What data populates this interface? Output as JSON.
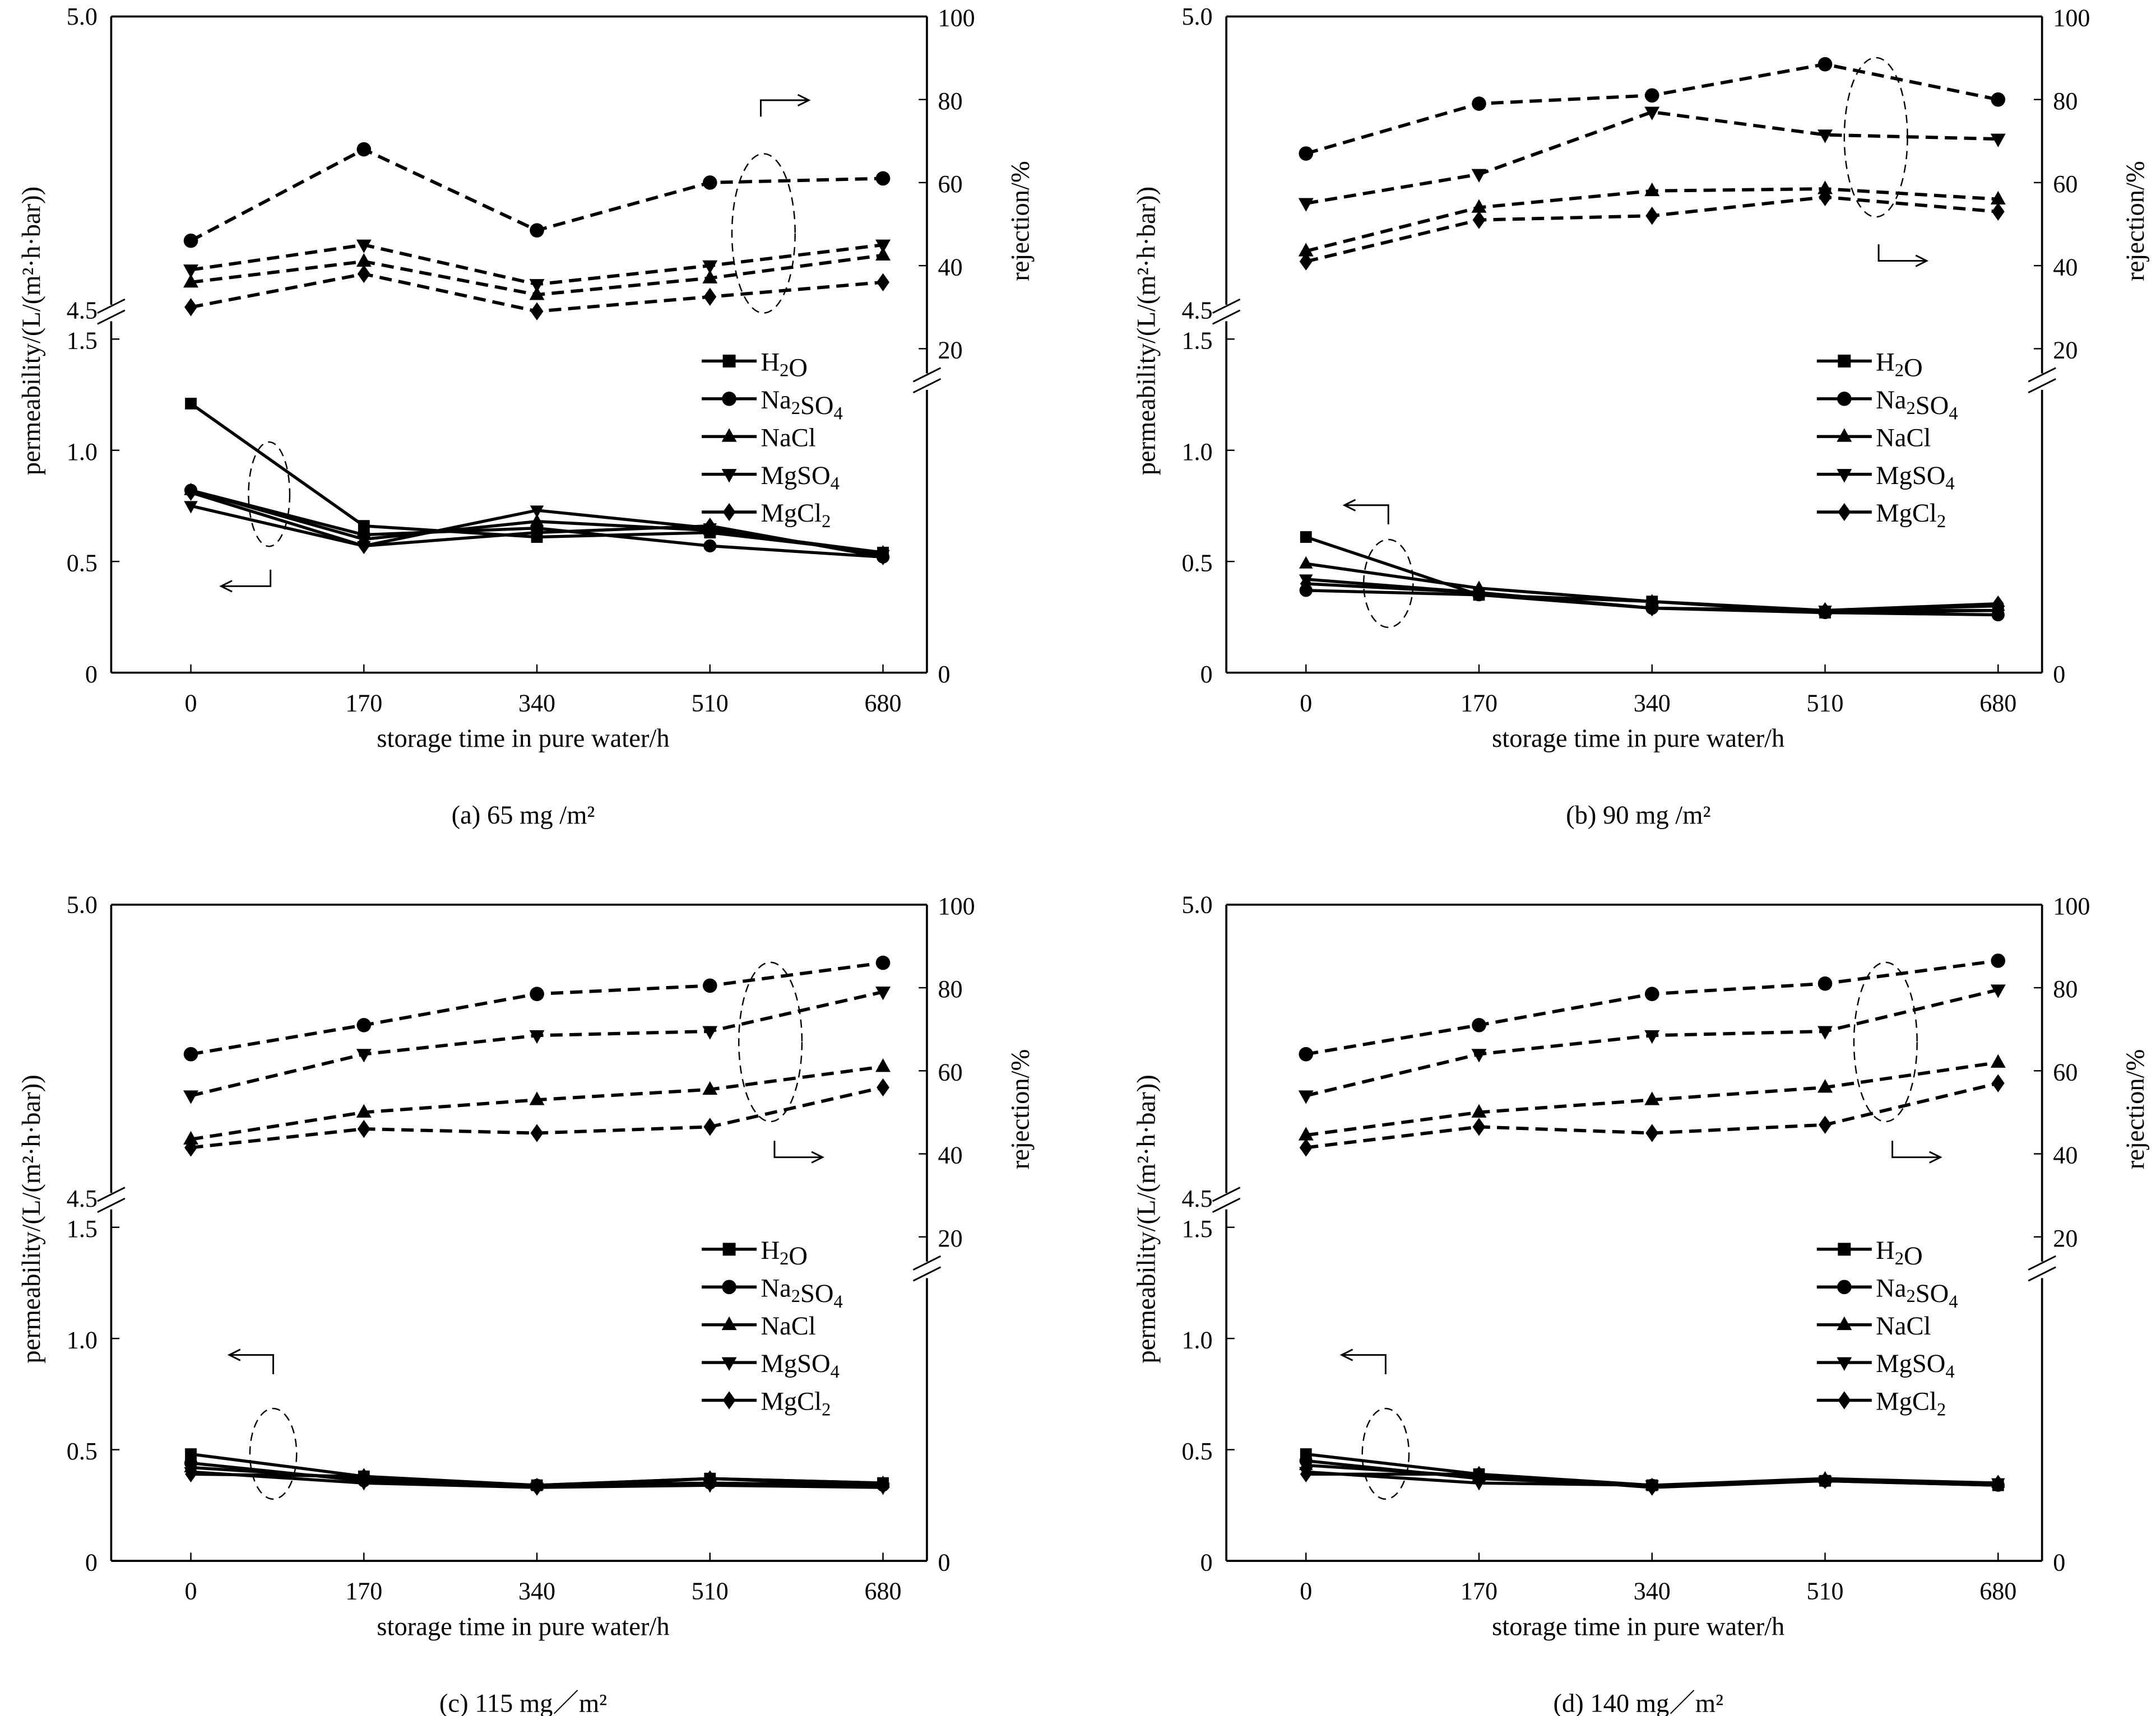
{
  "chart_data": [
    {
      "type": "line",
      "caption": "(a) 65 mg /m²",
      "xlabel": "storage time in pure water/h",
      "ylabel_left": "permeability/(L/(m²·h·bar))",
      "ylabel_right": "rejection/%",
      "x": [
        0,
        170,
        340,
        510,
        680
      ],
      "x_ticks": [
        "0",
        "170",
        "340",
        "510",
        "680"
      ],
      "y_left_ticks_lower": [
        "0",
        "0.5",
        "1.0",
        "1.5"
      ],
      "y_left_ticks_upper": [
        "4.5",
        "5.0"
      ],
      "y_right_ticks": [
        "0",
        "20",
        "40",
        "60",
        "80",
        "100"
      ],
      "ylim_left_lower": [
        0,
        1.5
      ],
      "ylim_left_upper": [
        4.5,
        5.0
      ],
      "ylim_right": [
        0,
        100
      ],
      "legend": [
        "H₂O",
        "Na₂SO₄",
        "NaCl",
        "MgSO₄",
        "MgCl₂"
      ],
      "legend_position": "right-middle",
      "permeability": [
        {
          "name": "H2O",
          "marker": "square",
          "values": [
            1.21,
            0.66,
            0.61,
            0.63,
            0.54
          ]
        },
        {
          "name": "Na2SO4",
          "marker": "circle",
          "values": [
            0.82,
            0.62,
            0.65,
            0.57,
            0.52
          ]
        },
        {
          "name": "NaCl",
          "marker": "triangle-up",
          "values": [
            0.82,
            0.6,
            0.68,
            0.64,
            0.54
          ]
        },
        {
          "name": "MgSO4",
          "marker": "triangle-down",
          "values": [
            0.75,
            0.57,
            0.73,
            0.65,
            0.53
          ]
        },
        {
          "name": "MgCl2",
          "marker": "diamond",
          "values": [
            0.81,
            0.57,
            0.63,
            0.66,
            0.52
          ]
        }
      ],
      "rejection": [
        {
          "name": "Na2SO4",
          "marker": "circle",
          "values": [
            46,
            68,
            48.5,
            60,
            61
          ]
        },
        {
          "name": "MgSO4",
          "marker": "triangle-down",
          "values": [
            39,
            45,
            35.5,
            40,
            45
          ]
        },
        {
          "name": "NaCl",
          "marker": "triangle-up",
          "values": [
            36,
            41,
            33,
            37,
            42.5
          ]
        },
        {
          "name": "MgCl2",
          "marker": "diamond",
          "values": [
            30,
            38,
            29,
            32.5,
            36
          ]
        }
      ],
      "arrow_left_position": "bottom-left",
      "arrow_right_position": "top"
    },
    {
      "type": "line",
      "caption": "(b) 90 mg /m²",
      "xlabel": "storage time in pure water/h",
      "ylabel_left": "permeability/(L/(m²·h·bar))",
      "ylabel_right": "rejection/%",
      "x": [
        0,
        170,
        340,
        510,
        680
      ],
      "x_ticks": [
        "0",
        "170",
        "340",
        "510",
        "680"
      ],
      "y_left_ticks_lower": [
        "0",
        "0.5",
        "1.0",
        "1.5"
      ],
      "y_left_ticks_upper": [
        "4.5",
        "5.0"
      ],
      "y_right_ticks": [
        "0",
        "20",
        "40",
        "60",
        "80",
        "100"
      ],
      "ylim_left_lower": [
        0,
        1.5
      ],
      "ylim_left_upper": [
        4.5,
        5.0
      ],
      "ylim_right": [
        0,
        100
      ],
      "legend": [
        "H₂O",
        "Na₂SO₄",
        "NaCl",
        "MgSO₄",
        "MgCl₂"
      ],
      "legend_position": "right-middle",
      "permeability": [
        {
          "name": "H2O",
          "marker": "square",
          "values": [
            0.61,
            0.35,
            0.32,
            0.27,
            0.28
          ]
        },
        {
          "name": "Na2SO4",
          "marker": "circle",
          "values": [
            0.37,
            0.35,
            0.29,
            0.27,
            0.26
          ]
        },
        {
          "name": "NaCl",
          "marker": "triangle-up",
          "values": [
            0.49,
            0.38,
            0.32,
            0.28,
            0.3
          ]
        },
        {
          "name": "MgSO4",
          "marker": "triangle-down",
          "values": [
            0.42,
            0.36,
            0.29,
            0.28,
            0.28
          ]
        },
        {
          "name": "MgCl2",
          "marker": "diamond",
          "values": [
            0.4,
            0.36,
            0.29,
            0.28,
            0.31
          ]
        }
      ],
      "rejection": [
        {
          "name": "Na2SO4",
          "marker": "circle",
          "values": [
            67,
            79,
            81,
            88.5,
            80
          ]
        },
        {
          "name": "MgSO4",
          "marker": "triangle-down",
          "values": [
            55,
            62,
            77,
            71.5,
            70.5
          ]
        },
        {
          "name": "NaCl",
          "marker": "triangle-up",
          "values": [
            43.5,
            54,
            58,
            58.5,
            56
          ]
        },
        {
          "name": "MgCl2",
          "marker": "diamond",
          "values": [
            41,
            51,
            52,
            56.5,
            53
          ]
        }
      ],
      "arrow_left_position": "upper-left",
      "arrow_right_position": "bottom"
    },
    {
      "type": "line",
      "caption": "(c) 115 mg／m²",
      "xlabel": "storage time in pure water/h",
      "ylabel_left": "permeability/(L/(m²·h·bar))",
      "ylabel_right": "rejection/%",
      "x": [
        0,
        170,
        340,
        510,
        680
      ],
      "x_ticks": [
        "0",
        "170",
        "340",
        "510",
        "680"
      ],
      "y_left_ticks_lower": [
        "0",
        "0.5",
        "1.0",
        "1.5"
      ],
      "y_left_ticks_upper": [
        "4.5",
        "5.0"
      ],
      "y_right_ticks": [
        "0",
        "20",
        "40",
        "60",
        "80",
        "100"
      ],
      "ylim_left_lower": [
        0,
        1.5
      ],
      "ylim_left_upper": [
        4.5,
        5.0
      ],
      "ylim_right": [
        0,
        100
      ],
      "legend": [
        "H₂O",
        "Na₂SO₄",
        "NaCl",
        "MgSO₄",
        "MgCl₂"
      ],
      "legend_position": "right-middle",
      "permeability": [
        {
          "name": "H2O",
          "marker": "square",
          "values": [
            0.48,
            0.38,
            0.34,
            0.37,
            0.35
          ]
        },
        {
          "name": "Na2SO4",
          "marker": "circle",
          "values": [
            0.44,
            0.36,
            0.34,
            0.35,
            0.34
          ]
        },
        {
          "name": "NaCl",
          "marker": "triangle-up",
          "values": [
            0.42,
            0.37,
            0.34,
            0.37,
            0.35
          ]
        },
        {
          "name": "MgSO4",
          "marker": "triangle-down",
          "values": [
            0.4,
            0.35,
            0.33,
            0.34,
            0.33
          ]
        },
        {
          "name": "MgCl2",
          "marker": "diamond",
          "values": [
            0.39,
            0.38,
            0.33,
            0.37,
            0.34
          ]
        }
      ],
      "rejection": [
        {
          "name": "Na2SO4",
          "marker": "circle",
          "values": [
            64,
            71,
            78.5,
            80.5,
            86
          ]
        },
        {
          "name": "MgSO4",
          "marker": "triangle-down",
          "values": [
            54,
            64,
            68.5,
            69.5,
            79
          ]
        },
        {
          "name": "NaCl",
          "marker": "triangle-up",
          "values": [
            43.5,
            50,
            53,
            55.5,
            61
          ]
        },
        {
          "name": "MgCl2",
          "marker": "diamond",
          "values": [
            41.5,
            46,
            45,
            46.5,
            56
          ]
        }
      ],
      "arrow_left_position": "upper-left",
      "arrow_right_position": "bottom"
    },
    {
      "type": "line",
      "caption": "(d) 140 mg／m²",
      "xlabel": "storage time in pure water/h",
      "ylabel_left": "permeability/(L/(m²·h·bar))",
      "ylabel_right": "rejection/%",
      "x": [
        0,
        170,
        340,
        510,
        680
      ],
      "x_ticks": [
        "0",
        "170",
        "340",
        "510",
        "680"
      ],
      "y_left_ticks_lower": [
        "0",
        "0.5",
        "1.0",
        "1.5"
      ],
      "y_left_ticks_upper": [
        "4.5",
        "5.0"
      ],
      "y_right_ticks": [
        "0",
        "20",
        "40",
        "60",
        "80",
        "100"
      ],
      "ylim_left_lower": [
        0,
        1.5
      ],
      "ylim_left_upper": [
        4.5,
        5.0
      ],
      "ylim_right": [
        0,
        100
      ],
      "legend": [
        "H₂O",
        "Na₂SO₄",
        "NaCl",
        "MgSO₄",
        "MgCl₂"
      ],
      "legend_position": "right-middle",
      "permeability": [
        {
          "name": "H2O",
          "marker": "square",
          "values": [
            0.48,
            0.39,
            0.34,
            0.36,
            0.34
          ]
        },
        {
          "name": "Na2SO4",
          "marker": "circle",
          "values": [
            0.45,
            0.37,
            0.34,
            0.36,
            0.34
          ]
        },
        {
          "name": "NaCl",
          "marker": "triangle-up",
          "values": [
            0.43,
            0.38,
            0.34,
            0.37,
            0.35
          ]
        },
        {
          "name": "MgSO4",
          "marker": "triangle-down",
          "values": [
            0.4,
            0.35,
            0.34,
            0.36,
            0.35
          ]
        },
        {
          "name": "MgCl2",
          "marker": "diamond",
          "values": [
            0.39,
            0.39,
            0.33,
            0.36,
            0.35
          ]
        }
      ],
      "rejection": [
        {
          "name": "Na2SO4",
          "marker": "circle",
          "values": [
            64,
            71,
            78.5,
            81,
            86.5
          ]
        },
        {
          "name": "MgSO4",
          "marker": "triangle-down",
          "values": [
            54,
            64,
            68.5,
            69.5,
            79.5
          ]
        },
        {
          "name": "NaCl",
          "marker": "triangle-up",
          "values": [
            44.5,
            50,
            53,
            56,
            62
          ]
        },
        {
          "name": "MgCl2",
          "marker": "diamond",
          "values": [
            41.5,
            46.5,
            45,
            47,
            57
          ]
        }
      ],
      "arrow_left_position": "upper-left",
      "arrow_right_position": "bottom"
    }
  ]
}
